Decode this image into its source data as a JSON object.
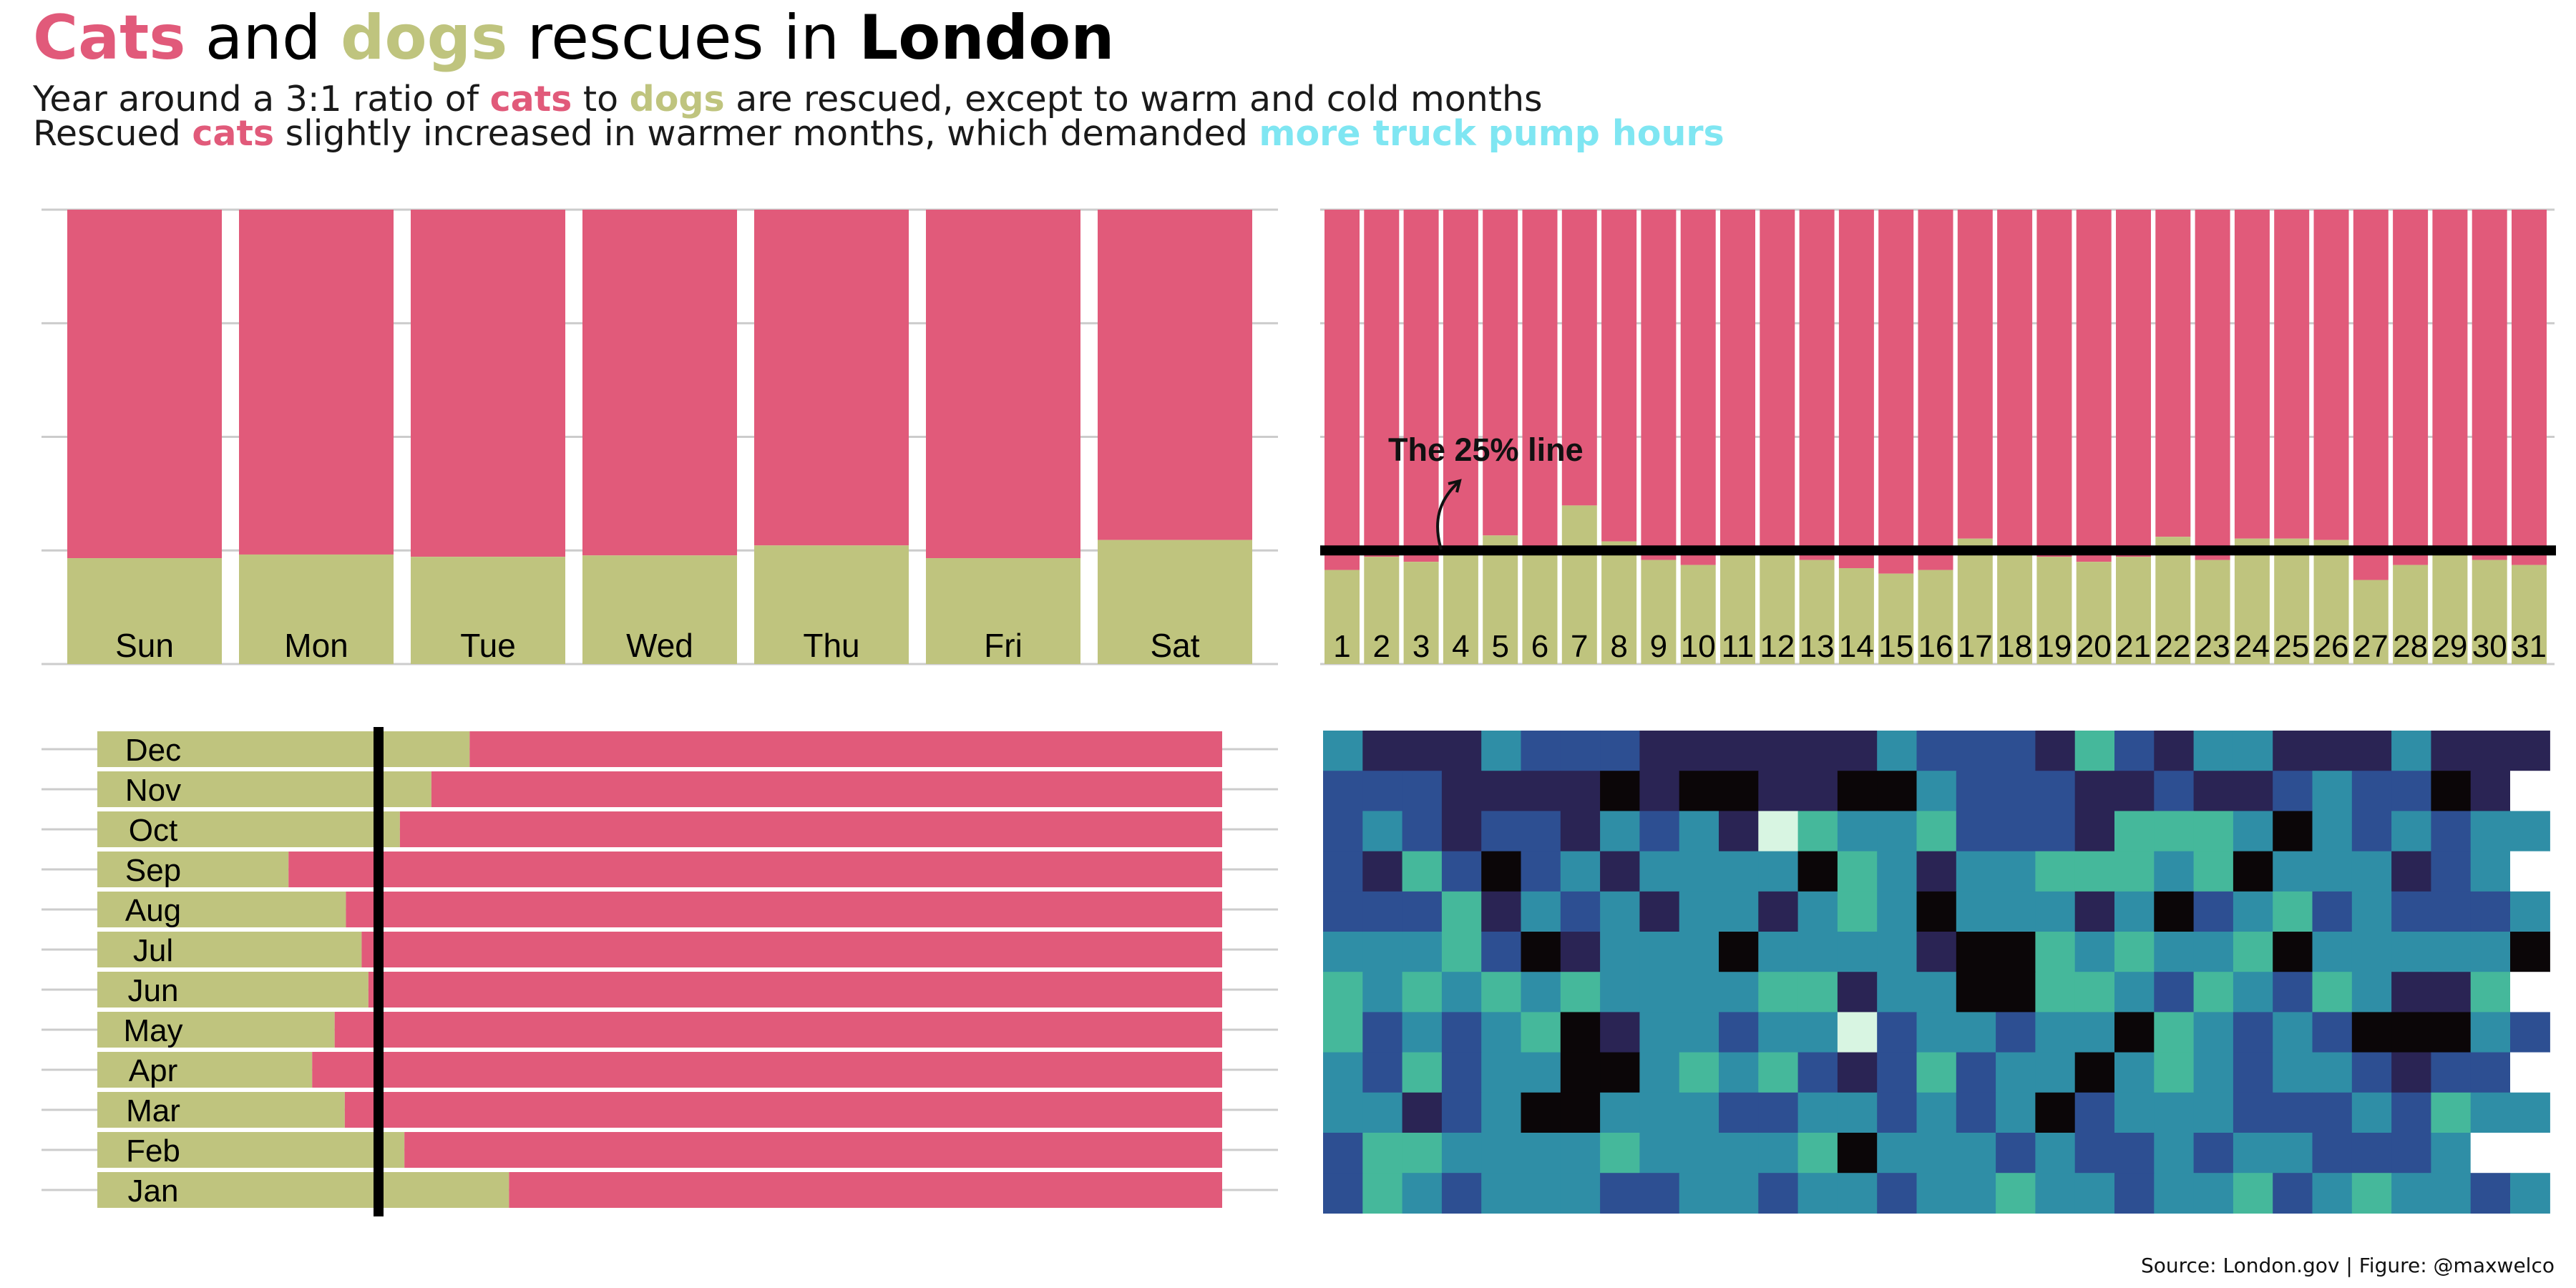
{
  "colors": {
    "cat": "#E15A7A",
    "dog": "#BFC47E",
    "pump": "#7FE6F2",
    "grid": "#CCCCCC"
  },
  "title": {
    "w1": "Cats",
    "w2": " and ",
    "w3": "dogs",
    "w4": " rescues in ",
    "w5": "London"
  },
  "subtitle": {
    "line1": {
      "a": "Year around a 3:1 ratio of ",
      "b": "cats",
      "c": " to ",
      "d": "dogs",
      "e": " are rescued, except to warm and cold months"
    },
    "line2": {
      "a": "Rescued ",
      "b": "cats",
      "c": " slightly increased in warmer months, which demanded ",
      "d": "more truck pump hours"
    }
  },
  "source": "Source: London.gov | Figure: @maxwelco",
  "annotation": "The 25% line",
  "chart_data": [
    {
      "type": "bar",
      "name": "weekday",
      "orientation": "vertical",
      "stacked_percent": true,
      "categories": [
        "Sun",
        "Mon",
        "Tue",
        "Wed",
        "Thu",
        "Fri",
        "Sat"
      ],
      "series": [
        {
          "key": "dog",
          "values": [
            23.3,
            24.1,
            23.6,
            23.9,
            26.1,
            23.3,
            27.3
          ]
        },
        {
          "key": "cat",
          "values": [
            76.7,
            75.9,
            76.4,
            76.1,
            73.9,
            76.7,
            72.7
          ]
        }
      ],
      "ylim": [
        0,
        100
      ]
    },
    {
      "type": "bar",
      "name": "day-of-month",
      "orientation": "vertical",
      "stacked_percent": true,
      "reference_line": 25,
      "categories": [
        "1",
        "2",
        "3",
        "4",
        "5",
        "6",
        "7",
        "8",
        "9",
        "10",
        "11",
        "12",
        "13",
        "14",
        "15",
        "16",
        "17",
        "18",
        "19",
        "20",
        "21",
        "22",
        "23",
        "24",
        "25",
        "26",
        "27",
        "28",
        "29",
        "30",
        "31"
      ],
      "series": [
        {
          "key": "dog",
          "values": [
            20.7,
            23.6,
            22.5,
            24.7,
            28.3,
            25.6,
            34.9,
            27.0,
            22.9,
            21.8,
            24.0,
            24.0,
            22.9,
            21.1,
            19.9,
            20.7,
            27.6,
            24.0,
            23.6,
            22.5,
            23.6,
            28.0,
            22.9,
            27.6,
            27.6,
            27.3,
            18.5,
            21.8,
            24.0,
            22.9,
            21.8
          ]
        },
        {
          "key": "cat",
          "values": [
            79.3,
            76.4,
            77.5,
            75.3,
            71.7,
            74.4,
            65.1,
            73.0,
            77.1,
            78.2,
            76.0,
            76.0,
            77.1,
            78.9,
            80.1,
            79.3,
            72.4,
            76.0,
            76.4,
            77.5,
            76.4,
            72.0,
            77.1,
            72.4,
            72.4,
            72.7,
            81.5,
            78.2,
            76.0,
            77.1,
            78.2
          ]
        }
      ],
      "ylim": [
        0,
        100
      ]
    },
    {
      "type": "bar",
      "name": "month",
      "orientation": "horizontal",
      "stacked_percent": true,
      "reference_line": 25,
      "categories": [
        "Jan",
        "Feb",
        "Mar",
        "Apr",
        "May",
        "Jun",
        "Jul",
        "Aug",
        "Sep",
        "Oct",
        "Nov",
        "Dec"
      ],
      "series": [
        {
          "key": "dog",
          "values": [
            36.6,
            27.3,
            22.0,
            19.1,
            21.1,
            24.1,
            23.5,
            22.1,
            17.0,
            26.9,
            29.7,
            33.1
          ]
        },
        {
          "key": "cat",
          "values": [
            63.4,
            72.7,
            78.0,
            80.9,
            78.9,
            75.9,
            76.5,
            77.9,
            83.0,
            73.1,
            70.3,
            66.9
          ]
        }
      ],
      "xlim": [
        0,
        100
      ]
    },
    {
      "type": "heatmap",
      "name": "pump-hours",
      "rows": 12,
      "cols": 31,
      "value_range": [
        0,
        10
      ],
      "colormap": [
        "#0B0608",
        "#2A2454",
        "#2D4F92",
        "#2F8EA6",
        "#45B89B",
        "#D8F5E2"
      ],
      "missing_color": "#FFFFFF",
      "values": [
        [
          3,
          1,
          1,
          1,
          3,
          2,
          2,
          2,
          1,
          1,
          1,
          1,
          1,
          1,
          3,
          2,
          2,
          2,
          1,
          4,
          2,
          1,
          3,
          3,
          1,
          1,
          1,
          3,
          1,
          1,
          1
        ],
        [
          2,
          2,
          2,
          1,
          1,
          1,
          1,
          0,
          1,
          0,
          0,
          1,
          1,
          0,
          0,
          3,
          2,
          2,
          2,
          1,
          1,
          2,
          1,
          1,
          2,
          3,
          2,
          2,
          0,
          1,
          1
        ],
        [
          2,
          3,
          2,
          1,
          2,
          2,
          1,
          3,
          2,
          3,
          1,
          5,
          4,
          3,
          3,
          4,
          2,
          2,
          2,
          1,
          4,
          4,
          4,
          3,
          0,
          3,
          2,
          3,
          2,
          3,
          3
        ],
        [
          2,
          1,
          4,
          2,
          0,
          2,
          3,
          1,
          3,
          3,
          3,
          3,
          0,
          4,
          3,
          1,
          3,
          3,
          4,
          4,
          4,
          3,
          4,
          0,
          3,
          3,
          3,
          1,
          2,
          3,
          4
        ],
        [
          2,
          2,
          2,
          4,
          1,
          3,
          2,
          3,
          1,
          3,
          3,
          1,
          3,
          4,
          3,
          0,
          3,
          3,
          3,
          1,
          3,
          0,
          2,
          3,
          4,
          2,
          3,
          2,
          2,
          2,
          3
        ],
        [
          3,
          3,
          3,
          4,
          2,
          0,
          1,
          3,
          3,
          3,
          0,
          3,
          3,
          3,
          3,
          1,
          0,
          0,
          4,
          3,
          4,
          3,
          3,
          4,
          0,
          3,
          3,
          3,
          3,
          3,
          0
        ],
        [
          4,
          3,
          4,
          3,
          4,
          3,
          4,
          3,
          3,
          3,
          3,
          4,
          4,
          1,
          3,
          3,
          0,
          0,
          4,
          4,
          3,
          2,
          4,
          3,
          2,
          4,
          3,
          1,
          1,
          4,
          4
        ],
        [
          4,
          2,
          3,
          2,
          3,
          4,
          0,
          1,
          3,
          3,
          2,
          3,
          3,
          5,
          2,
          3,
          3,
          2,
          3,
          3,
          0,
          4,
          3,
          2,
          3,
          2,
          0,
          0,
          0,
          3,
          2
        ],
        [
          3,
          2,
          4,
          2,
          3,
          3,
          0,
          0,
          3,
          4,
          3,
          4,
          2,
          1,
          2,
          4,
          2,
          3,
          3,
          0,
          3,
          4,
          3,
          2,
          3,
          3,
          2,
          1,
          2,
          2,
          3
        ],
        [
          3,
          3,
          1,
          2,
          3,
          0,
          0,
          3,
          3,
          3,
          2,
          2,
          3,
          3,
          2,
          3,
          2,
          3,
          0,
          2,
          3,
          3,
          3,
          2,
          2,
          2,
          3,
          2,
          4,
          3,
          3
        ],
        [
          2,
          4,
          4,
          3,
          3,
          3,
          3,
          4,
          3,
          3,
          3,
          3,
          4,
          0,
          3,
          3,
          3,
          2,
          3,
          2,
          2,
          3,
          2,
          3,
          3,
          2,
          2,
          2,
          3,
          3,
          2
        ],
        [
          2,
          4,
          3,
          2,
          3,
          3,
          3,
          2,
          2,
          3,
          3,
          2,
          3,
          3,
          2,
          3,
          3,
          4,
          3,
          3,
          2,
          3,
          3,
          4,
          2,
          3,
          4,
          3,
          3,
          2,
          3
        ]
      ]
    }
  ]
}
